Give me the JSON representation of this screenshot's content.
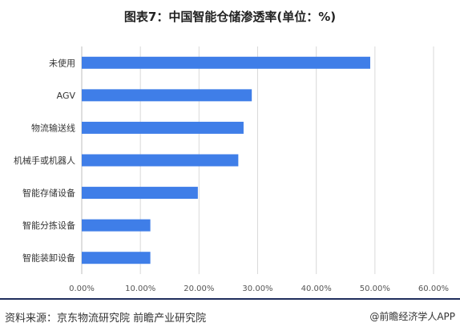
{
  "title": "图表7：中国智能仓储渗透率(单位：%)",
  "source": "资料来源：京东物流研究院 前瞻产业研究院",
  "credit": "@前瞻经济学人APP",
  "colors": {
    "bar": "#3f7ee8",
    "grid": "#d9d9d9",
    "axis_text": "#555555"
  },
  "chart_data": {
    "type": "bar",
    "orientation": "horizontal",
    "categories": [
      "未使用",
      "AGV",
      "物流输送线",
      "机械手或机器人",
      "智能存储设备",
      "智能分拣设备",
      "智能装卸设备"
    ],
    "values": [
      49.2,
      29.0,
      27.6,
      26.7,
      19.8,
      11.7,
      11.7
    ],
    "unit": "%",
    "xlim": [
      0,
      60
    ],
    "xticks": [
      "0.00%",
      "10.00%",
      "20.00%",
      "30.00%",
      "40.00%",
      "50.00%",
      "60.00%"
    ],
    "grid": "vertical"
  }
}
